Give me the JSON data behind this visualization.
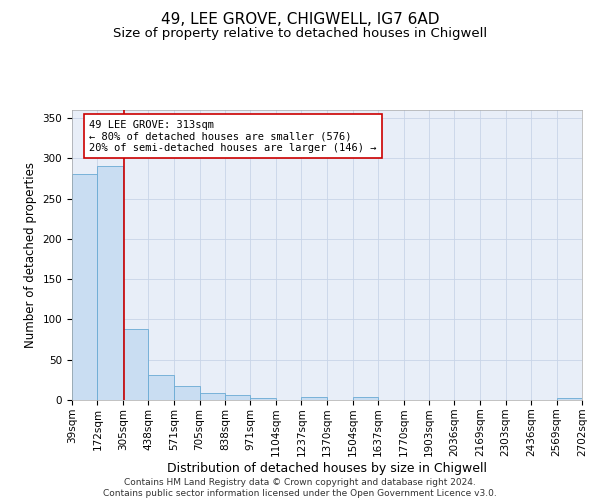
{
  "title": "49, LEE GROVE, CHIGWELL, IG7 6AD",
  "subtitle": "Size of property relative to detached houses in Chigwell",
  "xlabel": "Distribution of detached houses by size in Chigwell",
  "ylabel": "Number of detached properties",
  "footer_line1": "Contains HM Land Registry data © Crown copyright and database right 2024.",
  "footer_line2": "Contains public sector information licensed under the Open Government Licence v3.0.",
  "bin_edges": [
    39,
    172,
    305,
    438,
    571,
    705,
    838,
    971,
    1104,
    1237,
    1370,
    1504,
    1637,
    1770,
    1903,
    2036,
    2169,
    2303,
    2436,
    2569,
    2702
  ],
  "bar_values": [
    281,
    290,
    88,
    31,
    17,
    9,
    6,
    2,
    0,
    4,
    0,
    4,
    0,
    0,
    0,
    0,
    0,
    0,
    0,
    3
  ],
  "bar_color": "#c9ddf2",
  "bar_edge_color": "#6aaad4",
  "vline_x": 313,
  "vline_color": "#cc0000",
  "annotation_text": "49 LEE GROVE: 313sqm\n← 80% of detached houses are smaller (576)\n20% of semi-detached houses are larger (146) →",
  "annotation_box_color": "#ffffff",
  "annotation_box_edge_color": "#cc0000",
  "ylim": [
    0,
    360
  ],
  "yticks": [
    0,
    50,
    100,
    150,
    200,
    250,
    300,
    350
  ],
  "background_color": "#ffffff",
  "plot_bg_color": "#e8eef8",
  "grid_color": "#c8d4e8",
  "title_fontsize": 11,
  "subtitle_fontsize": 9.5,
  "axis_label_fontsize": 8.5,
  "tick_fontsize": 7.5,
  "annotation_fontsize": 7.5,
  "footer_fontsize": 6.5
}
